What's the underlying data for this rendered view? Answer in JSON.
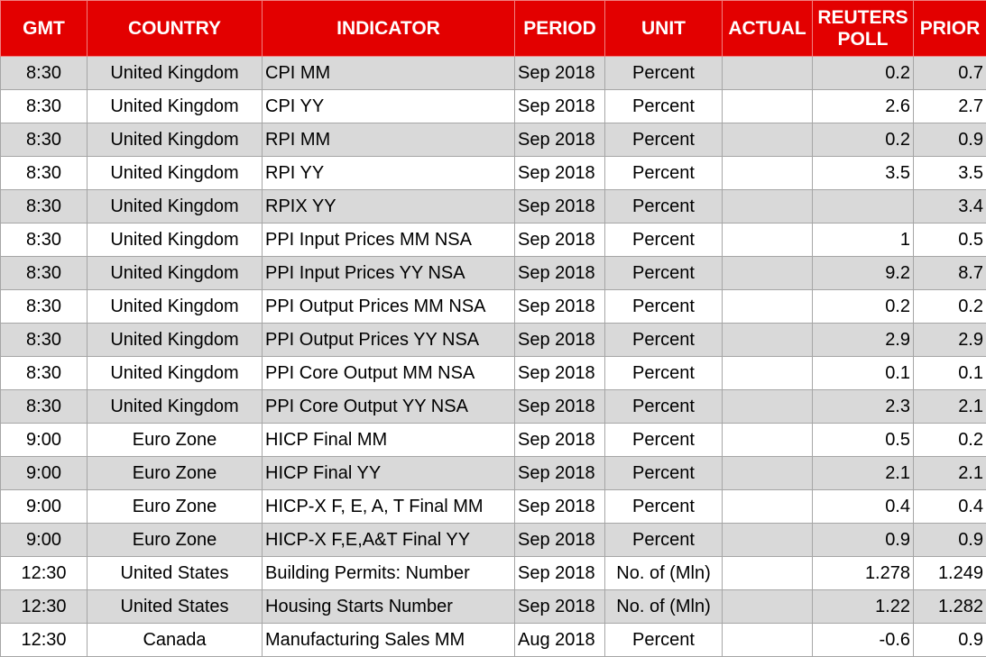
{
  "table": {
    "headers": [
      "GMT",
      "COUNTRY",
      "INDICATOR",
      "PERIOD",
      "UNIT",
      "ACTUAL",
      "REUTERS POLL",
      "PRIOR"
    ],
    "rows": [
      [
        "8:30",
        "United Kingdom",
        "CPI MM",
        "Sep 2018",
        "Percent",
        null,
        "0.2",
        "0.7"
      ],
      [
        "8:30",
        "United Kingdom",
        "CPI YY",
        "Sep 2018",
        "Percent",
        null,
        "2.6",
        "2.7"
      ],
      [
        "8:30",
        "United Kingdom",
        "RPI MM",
        "Sep 2018",
        "Percent",
        null,
        "0.2",
        "0.9"
      ],
      [
        "8:30",
        "United Kingdom",
        "RPI YY",
        "Sep 2018",
        "Percent",
        null,
        "3.5",
        "3.5"
      ],
      [
        "8:30",
        "United Kingdom",
        "RPIX YY",
        "Sep 2018",
        "Percent",
        null,
        null,
        "3.4"
      ],
      [
        "8:30",
        "United Kingdom",
        "PPI Input Prices MM NSA",
        "Sep 2018",
        "Percent",
        null,
        "1",
        "0.5"
      ],
      [
        "8:30",
        "United Kingdom",
        "PPI Input Prices YY NSA",
        "Sep 2018",
        "Percent",
        null,
        "9.2",
        "8.7"
      ],
      [
        "8:30",
        "United Kingdom",
        "PPI Output Prices MM NSA",
        "Sep 2018",
        "Percent",
        null,
        "0.2",
        "0.2"
      ],
      [
        "8:30",
        "United Kingdom",
        "PPI Output Prices YY NSA",
        "Sep 2018",
        "Percent",
        null,
        "2.9",
        "2.9"
      ],
      [
        "8:30",
        "United Kingdom",
        "PPI Core Output MM NSA",
        "Sep 2018",
        "Percent",
        null,
        "0.1",
        "0.1"
      ],
      [
        "8:30",
        "United Kingdom",
        "PPI Core Output YY NSA",
        "Sep 2018",
        "Percent",
        null,
        "2.3",
        "2.1"
      ],
      [
        "9:00",
        "Euro Zone",
        "HICP Final MM",
        "Sep 2018",
        "Percent",
        null,
        "0.5",
        "0.2"
      ],
      [
        "9:00",
        "Euro Zone",
        "HICP Final YY",
        "Sep 2018",
        "Percent",
        null,
        "2.1",
        "2.1"
      ],
      [
        "9:00",
        "Euro Zone",
        "HICP-X F, E, A, T Final MM",
        "Sep 2018",
        "Percent",
        null,
        "0.4",
        "0.4"
      ],
      [
        "9:00",
        "Euro Zone",
        "HICP-X F,E,A&T Final YY",
        "Sep 2018",
        "Percent",
        null,
        "0.9",
        "0.9"
      ],
      [
        "12:30",
        "United States",
        "Building Permits: Number",
        "Sep 2018",
        "No. of (Mln)",
        null,
        "1.278",
        "1.249"
      ],
      [
        "12:30",
        "United States",
        "Housing Starts Number",
        "Sep 2018",
        "No. of (Mln)",
        null,
        "1.22",
        "1.282"
      ],
      [
        "12:30",
        "Canada",
        "Manufacturing Sales MM",
        "Aug 2018",
        "Percent",
        null,
        "-0.6",
        "0.9"
      ]
    ]
  }
}
